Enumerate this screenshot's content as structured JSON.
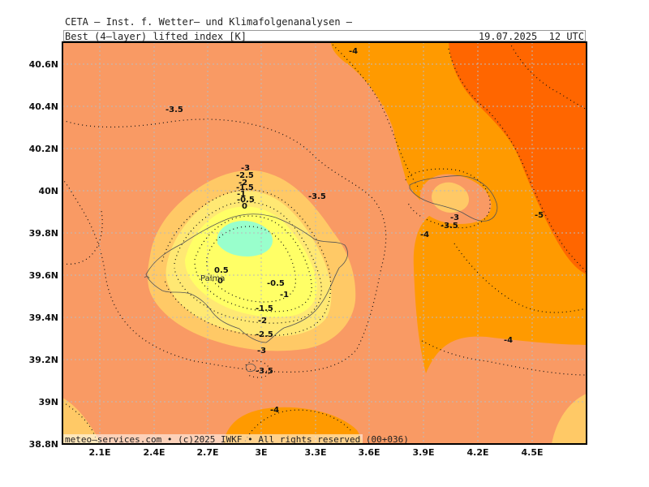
{
  "header": {
    "title": "CETA — Inst. f. Wetter— und Klimafolgenanalysen —",
    "field": "Best_(4—layer)_lifted_index_[K]",
    "valid_time": "19.07.2025  12 UTC"
  },
  "map": {
    "lat_ticks": [
      "40.6N",
      "40.4N",
      "40.2N",
      "40N",
      "39.8N",
      "39.6N",
      "39.4N",
      "39.2N",
      "39N",
      "38.8N"
    ],
    "lon_ticks": [
      "2.1E",
      "2.4E",
      "2.7E",
      "3E",
      "3.3E",
      "3.6E",
      "3.9E",
      "4.2E",
      "4.5E"
    ],
    "contour_labels": [
      "-4",
      "-3.5",
      "-3",
      "-2.5",
      "-2",
      "-1.5",
      "-1",
      "-0.5",
      "0",
      "-3.5",
      "-3",
      "-3.5",
      "-4",
      "-5",
      "0.5",
      "0",
      "-0.5",
      "-1",
      "-1.5",
      "-2",
      "-2.5",
      "-3",
      "-3.5",
      "-4",
      "-4"
    ],
    "city_label": "Palma",
    "fill_colors": {
      "band_minus5": "#ff6600",
      "band_minus4": "#ff9a00",
      "band_minus3": "#f99a64",
      "band_minus2": "#ffc966",
      "band_minus1": "#ffe873",
      "band_0": "#ffff66",
      "band_pos": "#99ffcc",
      "grid": "#bbbbbb"
    }
  },
  "footer": {
    "credit": "meteo—services.com • (c)2025 IWKF • All rights reserved (00+036)"
  }
}
